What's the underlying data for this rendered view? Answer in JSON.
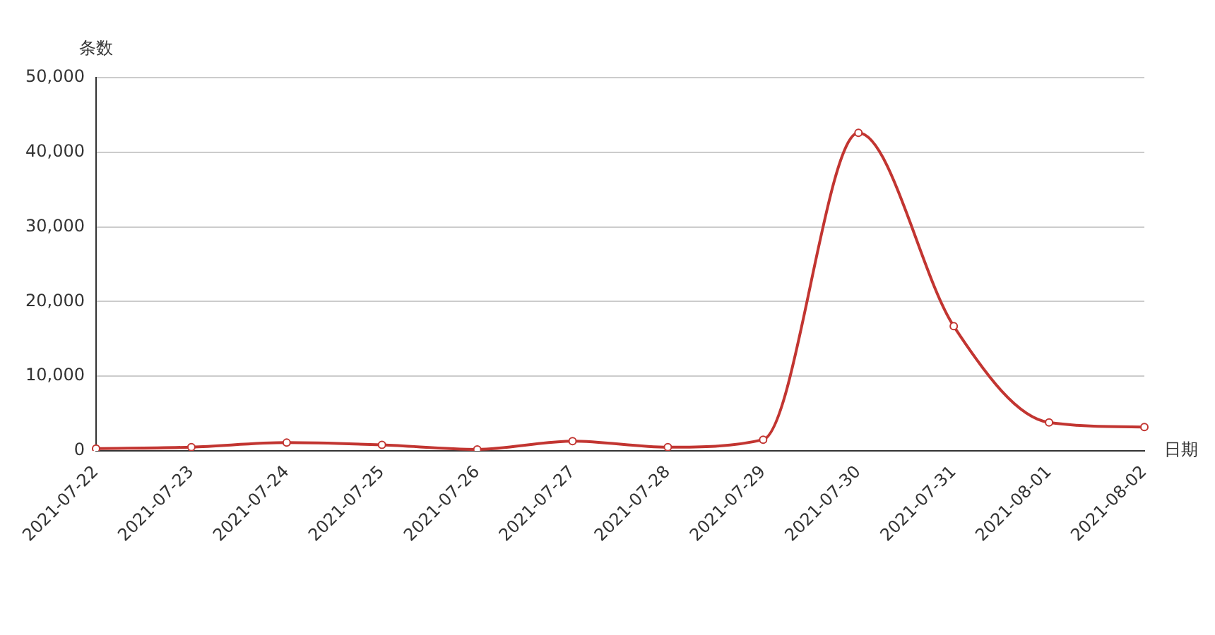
{
  "chart_data": {
    "type": "line",
    "xlabel": "日期",
    "ylabel": "条数",
    "categories": [
      "2021-07-22",
      "2021-07-23",
      "2021-07-24",
      "2021-07-25",
      "2021-07-26",
      "2021-07-27",
      "2021-07-28",
      "2021-07-29",
      "2021-07-30",
      "2021-07-31",
      "2021-08-01",
      "2021-08-02"
    ],
    "series": [
      {
        "color": "#c23531",
        "values": [
          300,
          500,
          1100,
          800,
          200,
          1300,
          500,
          1500,
          42600,
          16700,
          3800,
          3200
        ]
      }
    ],
    "ylim": [
      0,
      50000
    ],
    "yticks": [
      0,
      {
        "value": 10000,
        "label": "10,000"
      },
      {
        "value": 20000,
        "label": "20,000"
      },
      {
        "value": 30000,
        "label": "30,000"
      },
      {
        "value": 40000,
        "label": "40,000"
      },
      {
        "value": 50000,
        "label": "50,000"
      }
    ],
    "grid": "y",
    "legend": false,
    "marker": "circle",
    "line_style": "solid"
  }
}
